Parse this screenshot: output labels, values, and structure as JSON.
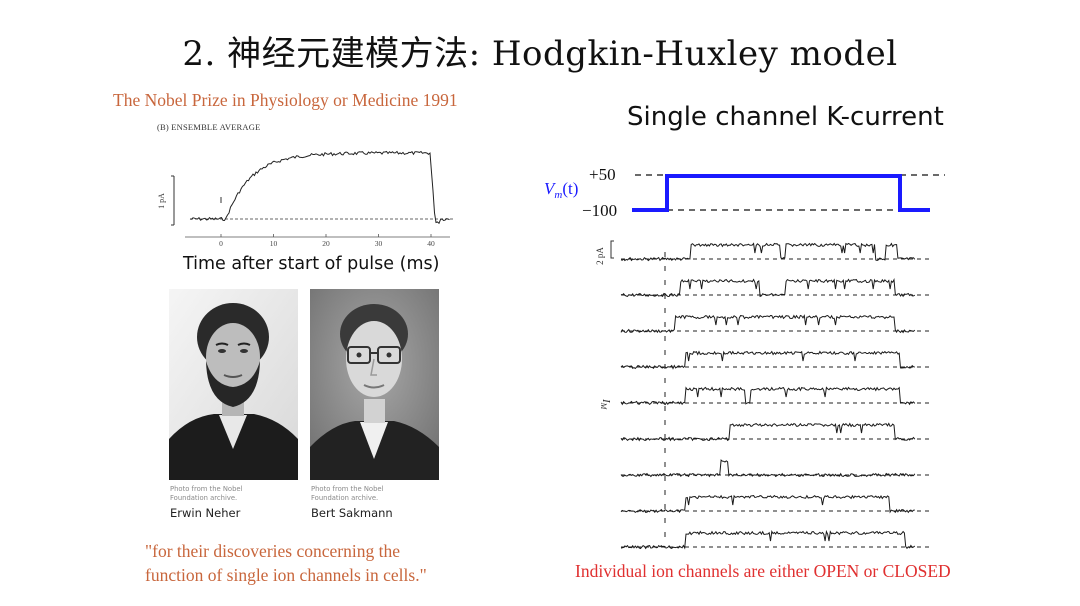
{
  "slide": {
    "title": "2. 神经元建模方法: Hodgkin-Huxley model",
    "nobel_caption": "The Nobel Prize in Physiology or Medicine 1991",
    "right_heading": "Single channel K-current",
    "quote_line1": "\"for their discoveries concerning the",
    "quote_line2": "function of single ion channels in cells.\"",
    "bottom_caption": "Individual ion channels are either OPEN or CLOSED"
  },
  "ensemble_panel": {
    "panel_label": "(B)  ENSEMBLE AVERAGE",
    "y_scale_label": "1 pA",
    "x_ticks": [
      "0",
      "10",
      "20",
      "30",
      "40"
    ],
    "x_axis_title": "Time after start of pulse (ms)"
  },
  "laureates": [
    {
      "credit_line1": "Photo from the Nobel",
      "credit_line2": "Foundation archive.",
      "name": "Erwin Neher"
    },
    {
      "credit_line1": "Photo from the Nobel",
      "credit_line2": "Foundation archive.",
      "name": "Bert Sakmann"
    }
  ],
  "voltage_protocol": {
    "label_main": "V",
    "label_sub": "m",
    "label_arg": "(t)",
    "high_label": "+50",
    "low_label": "−100",
    "color": "#1a1aff"
  },
  "single_channel_panel": {
    "scale_label": "2 pA",
    "y_label_main": "I",
    "y_label_sub": "M",
    "trace_count": 9
  },
  "colors": {
    "accent_orange": "#c8663c",
    "caption_red": "#e03030",
    "protocol_blue": "#1a1aff"
  }
}
